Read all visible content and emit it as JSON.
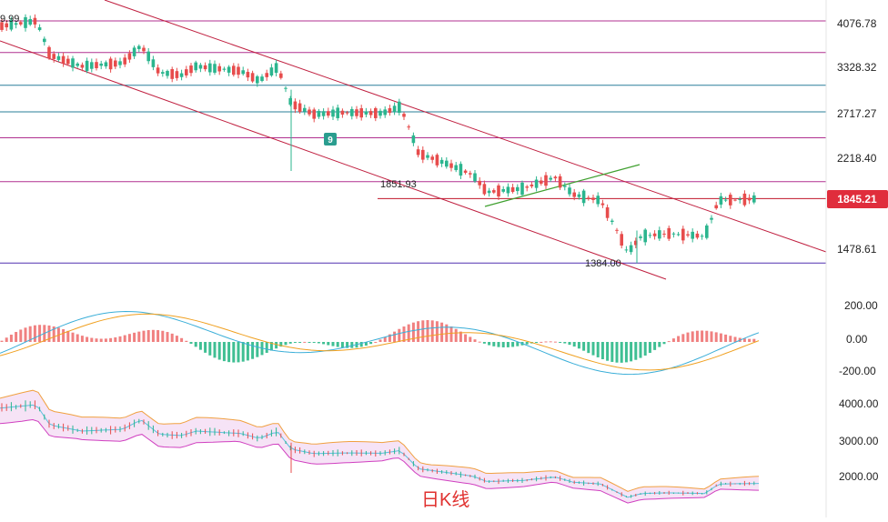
{
  "colors": {
    "up": "#e74c4c",
    "down": "#2bb58e",
    "macd_pos": "#f08080",
    "macd_neg": "#3fbf93",
    "dif": "#3aaed8",
    "dea": "#f0a020",
    "boll_upper": "#f0a040",
    "boll_mid": "#5bc0de",
    "boll_lower": "#d040c0",
    "boll_fill": "#f4dcf4",
    "hline_magenta": "#b03090",
    "hline_teal": "#2a7f9a",
    "hline_red": "#c0142a",
    "hline_purple": "#5030b0",
    "channel": "#c02040",
    "trend_green": "#40a030",
    "price_tag": "#e02d3c",
    "marker": "#2a9d8f"
  },
  "chart_data": {
    "type": "candlestick",
    "caption": "日K线",
    "price_axis": {
      "ticks": [
        "4076.78",
        "3328.32",
        "2717.27",
        "2218.40",
        "1478.61"
      ],
      "current_price": "1845.21",
      "log_scale": true
    },
    "macd_axis": {
      "ticks": [
        "200.00",
        "0.00",
        "-200.00"
      ]
    },
    "boll_axis": {
      "ticks": [
        "4000.00",
        "3000.00",
        "2000.00"
      ]
    },
    "annotations": {
      "high_label": "9.99",
      "support_label": "1851.93",
      "low_label": "1384.00",
      "marker_label": "9"
    },
    "horizontal_levels": [
      4076.78,
      3540,
      3060,
      2717.27,
      2420,
      1990,
      1845.21,
      1384.0
    ],
    "grid": false,
    "legend": "none"
  }
}
